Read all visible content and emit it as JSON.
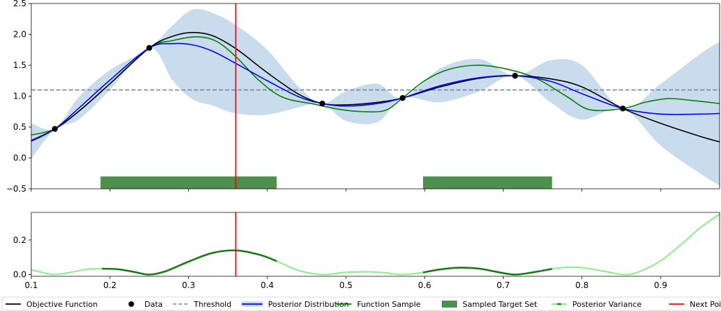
{
  "chart_data": [
    {
      "panel": "top",
      "type": "line",
      "xlim": [
        0.1,
        0.975
      ],
      "ylim": [
        -0.5,
        2.5
      ],
      "yticks": [
        -0.5,
        0.0,
        0.5,
        1.0,
        1.5,
        2.0,
        2.5
      ],
      "ytick_labels": [
        "−0.5",
        "0.0",
        "0.5",
        "1.0",
        "1.5",
        "2.0",
        "2.5"
      ],
      "xtick_labels": [],
      "grid": false,
      "threshold": 1.1,
      "next_point": 0.36,
      "sampled_target_set": [
        [
          0.188,
          0.412
        ],
        [
          0.598,
          0.762
        ]
      ],
      "sampled_target_band_y": [
        -0.3,
        -0.5
      ],
      "data_points": {
        "x": [
          0.13,
          0.25,
          0.47,
          0.572,
          0.715,
          0.852
        ],
        "y": [
          0.47,
          1.78,
          0.88,
          0.97,
          1.33,
          0.8
        ]
      },
      "series": [
        {
          "name": "Objective Function",
          "x": [
            0.1,
            0.13,
            0.16,
            0.2,
            0.25,
            0.28,
            0.305,
            0.33,
            0.36,
            0.4,
            0.44,
            0.47,
            0.5,
            0.54,
            0.572,
            0.62,
            0.67,
            0.715,
            0.76,
            0.8,
            0.852,
            0.9,
            0.95,
            0.975
          ],
          "y": [
            0.28,
            0.47,
            0.75,
            1.2,
            1.78,
            1.97,
            2.03,
            1.98,
            1.77,
            1.38,
            1.03,
            0.88,
            0.86,
            0.9,
            0.97,
            1.15,
            1.29,
            1.33,
            1.28,
            1.15,
            0.8,
            0.56,
            0.35,
            0.26
          ]
        },
        {
          "name": "Posterior Distribution",
          "x": [
            0.1,
            0.13,
            0.16,
            0.2,
            0.25,
            0.28,
            0.305,
            0.33,
            0.36,
            0.4,
            0.44,
            0.47,
            0.5,
            0.54,
            0.572,
            0.62,
            0.67,
            0.715,
            0.76,
            0.8,
            0.852,
            0.9,
            0.95,
            0.975
          ],
          "y": [
            0.27,
            0.47,
            0.8,
            1.26,
            1.78,
            1.85,
            1.83,
            1.73,
            1.53,
            1.25,
            0.99,
            0.88,
            0.84,
            0.88,
            0.97,
            1.17,
            1.3,
            1.33,
            1.24,
            1.04,
            0.8,
            0.71,
            0.71,
            0.72
          ]
        },
        {
          "name": "Function Sample",
          "x": [
            0.1,
            0.13,
            0.16,
            0.2,
            0.25,
            0.28,
            0.31,
            0.335,
            0.36,
            0.39,
            0.42,
            0.46,
            0.49,
            0.52,
            0.55,
            0.572,
            0.6,
            0.63,
            0.665,
            0.7,
            0.74,
            0.78,
            0.81,
            0.852,
            0.88,
            0.91,
            0.94,
            0.975
          ],
          "y": [
            0.37,
            0.47,
            0.75,
            1.2,
            1.78,
            1.9,
            1.96,
            1.89,
            1.64,
            1.25,
            0.98,
            0.87,
            0.79,
            0.75,
            0.77,
            0.97,
            1.25,
            1.43,
            1.5,
            1.45,
            1.3,
            1.0,
            0.78,
            0.8,
            0.9,
            0.96,
            0.93,
            0.88
          ]
        }
      ],
      "posterior_band": {
        "x": [
          0.1,
          0.13,
          0.16,
          0.2,
          0.25,
          0.28,
          0.305,
          0.33,
          0.36,
          0.4,
          0.44,
          0.47,
          0.5,
          0.54,
          0.572,
          0.62,
          0.67,
          0.715,
          0.76,
          0.8,
          0.852,
          0.9,
          0.95,
          0.975
        ],
        "lower": [
          -0.02,
          0.47,
          0.62,
          1.1,
          1.78,
          1.25,
          0.95,
          0.85,
          0.72,
          0.7,
          0.82,
          0.88,
          0.6,
          0.58,
          0.97,
          0.9,
          1.08,
          1.33,
          0.9,
          0.62,
          0.8,
          0.2,
          -0.25,
          -0.45
        ],
        "upper": [
          0.56,
          0.47,
          0.98,
          1.42,
          1.78,
          2.15,
          2.4,
          2.35,
          2.15,
          1.75,
          1.15,
          0.88,
          1.08,
          1.2,
          0.97,
          1.45,
          1.6,
          1.33,
          1.58,
          1.5,
          0.8,
          1.2,
          1.68,
          1.88
        ]
      }
    },
    {
      "panel": "bottom",
      "type": "line",
      "xlim": [
        0.1,
        0.975
      ],
      "ylim": [
        -0.01,
        0.36
      ],
      "xticks": [
        0.1,
        0.2,
        0.3,
        0.4,
        0.5,
        0.6,
        0.7,
        0.8,
        0.9
      ],
      "xtick_labels": [
        "0.1",
        "0.2",
        "0.3",
        "0.4",
        "0.5",
        "0.6",
        "0.7",
        "0.8",
        "0.9"
      ],
      "yticks": [
        0.0,
        0.2
      ],
      "ytick_labels": [
        "0.0",
        "0.2"
      ],
      "grid": false,
      "next_point": 0.36,
      "series": [
        {
          "name": "Posterior Variance",
          "x": [
            0.1,
            0.115,
            0.13,
            0.15,
            0.17,
            0.19,
            0.21,
            0.23,
            0.25,
            0.27,
            0.3,
            0.33,
            0.36,
            0.39,
            0.412,
            0.44,
            0.47,
            0.5,
            0.53,
            0.55,
            0.572,
            0.598,
            0.62,
            0.645,
            0.67,
            0.69,
            0.715,
            0.74,
            0.762,
            0.78,
            0.8,
            0.83,
            0.852,
            0.87,
            0.9,
            0.93,
            0.95,
            0.975
          ],
          "y": [
            0.028,
            0.012,
            0.0,
            0.013,
            0.03,
            0.034,
            0.031,
            0.016,
            0.0,
            0.018,
            0.075,
            0.125,
            0.14,
            0.115,
            0.078,
            0.024,
            0.0,
            0.013,
            0.016,
            0.01,
            0.0,
            0.012,
            0.03,
            0.04,
            0.034,
            0.017,
            0.0,
            0.015,
            0.033,
            0.042,
            0.04,
            0.018,
            0.0,
            0.012,
            0.08,
            0.19,
            0.27,
            0.35
          ]
        }
      ],
      "target_segments": [
        [
          0.188,
          0.412
        ],
        [
          0.598,
          0.762
        ]
      ]
    }
  ],
  "legend": {
    "placement": "bottom",
    "items": [
      {
        "label": "Objective Function",
        "kind": "line",
        "color": "#000000"
      },
      {
        "label": "Data",
        "kind": "marker",
        "color": "#000000"
      },
      {
        "label": "Threshold",
        "kind": "dashed",
        "color": "#778899"
      },
      {
        "label": "Posterior Distribution",
        "kind": "band-line",
        "color": "#0000ff"
      },
      {
        "label": "Function Sample",
        "kind": "line",
        "color": "#008000"
      },
      {
        "label": "Sampled Target Set",
        "kind": "patch",
        "color": "#4e8f4e"
      },
      {
        "label": "Posterior Variance",
        "kind": "variance",
        "color": "#90ee90"
      },
      {
        "label": "Next Point",
        "kind": "line",
        "color": "#ff0000"
      }
    ]
  },
  "colors": {
    "objective": "#000000",
    "posterior": "#0000ff",
    "band": "#c8dcee",
    "sample": "#008000",
    "target_set": "#4e8f4e",
    "threshold": "#778899",
    "variance_light": "#90ee90",
    "variance_dark": "#1a7a1a",
    "next_point": "#ff0000"
  }
}
